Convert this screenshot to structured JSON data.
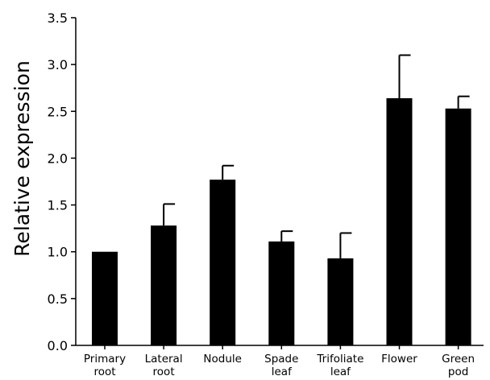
{
  "chart_data": {
    "type": "bar",
    "title": "",
    "xlabel": "",
    "ylabel": "Relative expression",
    "ylim": [
      0,
      3.5
    ],
    "yticks": [
      "0.0",
      "0.5",
      "1.0",
      "1.5",
      "2.0",
      "2.5",
      "3.0",
      "3.5"
    ],
    "grid": false,
    "categories": [
      [
        "Primary",
        "root"
      ],
      [
        "Lateral",
        "root"
      ],
      [
        "Nodule"
      ],
      [
        "Spade",
        "leaf"
      ],
      [
        "Trifoliate",
        "leaf"
      ],
      [
        "Flower"
      ],
      [
        "Green",
        "pod"
      ]
    ],
    "values": [
      1.0,
      1.28,
      1.77,
      1.11,
      0.93,
      2.64,
      2.53
    ],
    "errors": [
      0.0,
      0.23,
      0.15,
      0.11,
      0.27,
      0.46,
      0.13
    ],
    "bar_color": "#000000"
  }
}
